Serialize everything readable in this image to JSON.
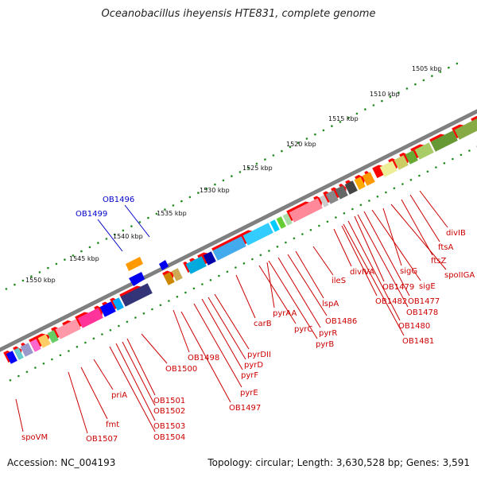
{
  "title": "Oceanobacillus iheyensis HTE831, complete genome",
  "footer": {
    "accession": "Accession: NC_004193",
    "summary": "Topology: circular; Length: 3,630,528 bp; Genes: 3,591"
  },
  "scale_ticks": [
    "1505 kbp",
    "1510 kbp",
    "1515 kbp",
    "1520 kbp",
    "1525 kbp",
    "1530 kbp",
    "1535 kbp",
    "1540 kbp",
    "1545 kbp",
    "1550 kbp"
  ],
  "colors": {
    "forward_gene": "#ff0000",
    "scale_dots": "#228b22",
    "backbone": "#808080",
    "label_red": "#cc0000",
    "label_blue": "#0000cc"
  },
  "labels_upper_blue": [
    "OB1496",
    "OB1499"
  ],
  "labels_lower": [
    "divIB",
    "ftsA",
    "ftsZ",
    "spoIIGA",
    "sigG",
    "sigE",
    "OB1477",
    "OB1478",
    "OB1479",
    "OB1480",
    "OB1481",
    "OB1482",
    "divIVA",
    "ileS",
    "lspA",
    "OB1486",
    "pyrAA",
    "pyrR",
    "pyrB",
    "pyrC",
    "carB",
    "pyrDII",
    "pyrD",
    "pyrF",
    "pyrE",
    "OB1497",
    "OB1498",
    "OB1500",
    "OB1501",
    "OB1502",
    "OB1503",
    "OB1504",
    "priA",
    "fmt",
    "OB1507",
    "spoVM"
  ]
}
